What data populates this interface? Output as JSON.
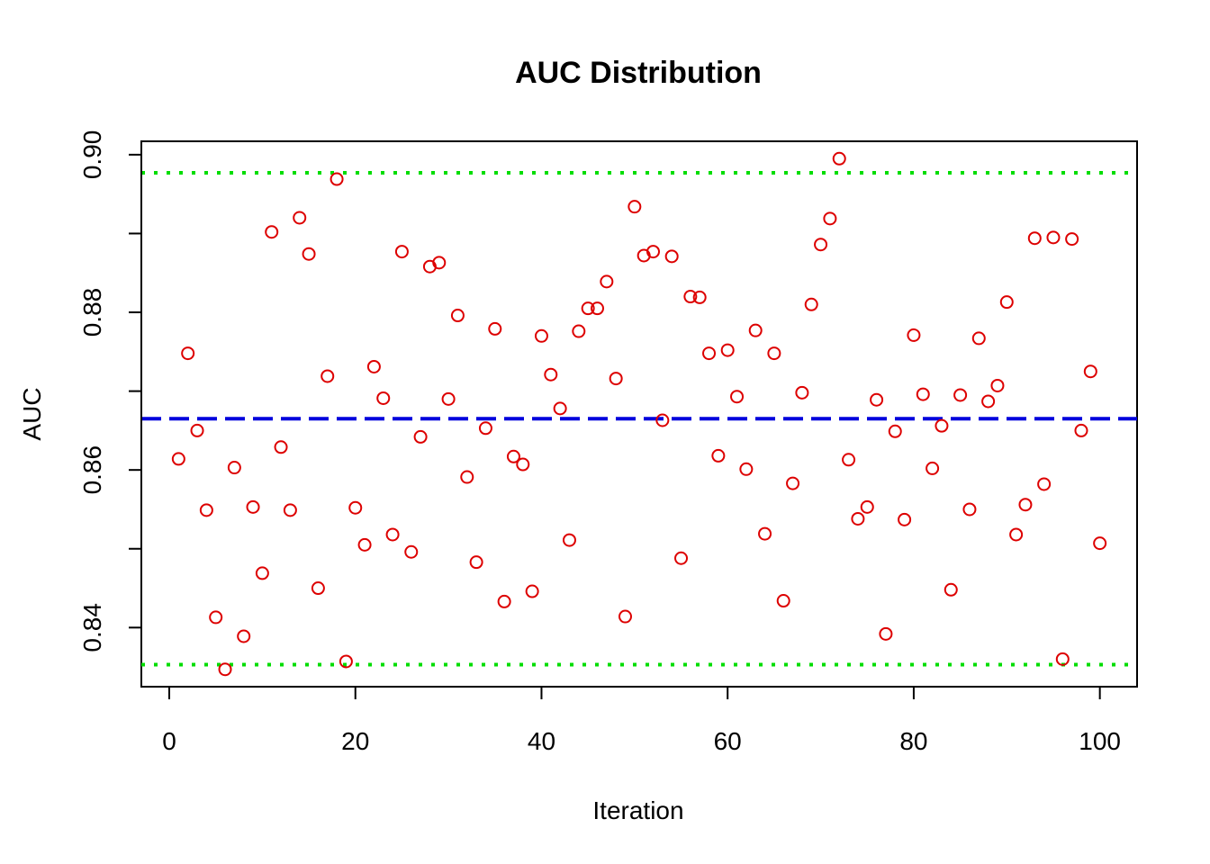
{
  "chart_data": {
    "type": "scatter",
    "title": "AUC Distribution",
    "xlabel": "Iteration",
    "ylabel": "AUC",
    "xlim": [
      -3,
      104
    ],
    "ylim": [
      0.8325,
      0.9017
    ],
    "x_ticks": [
      0,
      20,
      40,
      60,
      80,
      100
    ],
    "x_tick_labels": [
      "0",
      "20",
      "40",
      "60",
      "80",
      "100"
    ],
    "y_ticks": [
      0.84,
      0.86,
      0.88,
      0.9
    ],
    "y_tick_labels": [
      "0.84",
      "0.86",
      "0.88",
      "0.90"
    ],
    "y_minor_ticks": [
      0.85,
      0.87,
      0.89
    ],
    "grid": false,
    "point_color": "#dd0000",
    "reference_lines": [
      {
        "kind": "mean",
        "y": 0.8665,
        "color": "#0000dd",
        "style": "dashed"
      },
      {
        "kind": "upper",
        "y": 0.8977,
        "color": "#00dd00",
        "style": "dotted"
      },
      {
        "kind": "lower",
        "y": 0.8353,
        "color": "#00dd00",
        "style": "dotted"
      }
    ],
    "x": [
      1,
      2,
      3,
      4,
      5,
      6,
      7,
      8,
      9,
      10,
      11,
      12,
      13,
      14,
      15,
      16,
      17,
      18,
      19,
      20,
      21,
      22,
      23,
      24,
      25,
      26,
      27,
      28,
      29,
      30,
      31,
      32,
      33,
      34,
      35,
      36,
      37,
      38,
      39,
      40,
      41,
      42,
      43,
      44,
      45,
      46,
      47,
      48,
      49,
      50,
      51,
      52,
      53,
      54,
      55,
      56,
      57,
      58,
      59,
      60,
      61,
      62,
      63,
      64,
      65,
      66,
      67,
      68,
      69,
      70,
      71,
      72,
      73,
      74,
      75,
      76,
      77,
      78,
      79,
      80,
      81,
      82,
      83,
      84,
      85,
      86,
      87,
      88,
      89,
      90,
      91,
      92,
      93,
      94,
      95,
      96,
      97,
      98,
      99,
      100
    ],
    "y": [
      0.8614,
      0.8748,
      0.865,
      0.8549,
      0.8413,
      0.8347,
      0.8603,
      0.8389,
      0.8553,
      0.8469,
      0.8902,
      0.8629,
      0.8549,
      0.892,
      0.8874,
      0.845,
      0.8719,
      0.8969,
      0.8357,
      0.8552,
      0.8505,
      0.8731,
      0.8691,
      0.8518,
      0.8877,
      0.8496,
      0.8642,
      0.8858,
      0.8863,
      0.869,
      0.8796,
      0.8591,
      0.8483,
      0.8653,
      0.8779,
      0.8433,
      0.8617,
      0.8607,
      0.8446,
      0.877,
      0.8721,
      0.8678,
      0.8511,
      0.8776,
      0.8805,
      0.8805,
      0.8839,
      0.8716,
      0.8414,
      0.8934,
      0.8872,
      0.8877,
      0.8663,
      0.8871,
      0.8488,
      0.882,
      0.8819,
      0.8748,
      0.8618,
      0.8752,
      0.8693,
      0.8601,
      0.8777,
      0.8519,
      0.8748,
      0.8434,
      0.8583,
      0.8698,
      0.881,
      0.8886,
      0.8919,
      0.8995,
      0.8613,
      0.8538,
      0.8553,
      0.8689,
      0.8392,
      0.8649,
      0.8537,
      0.8771,
      0.8696,
      0.8602,
      0.8656,
      0.8448,
      0.8695,
      0.855,
      0.8767,
      0.8687,
      0.8707,
      0.8813,
      0.8518,
      0.8556,
      0.8894,
      0.8582,
      0.8895,
      0.836,
      0.8893,
      0.865,
      0.8725,
      0.8507
    ]
  }
}
